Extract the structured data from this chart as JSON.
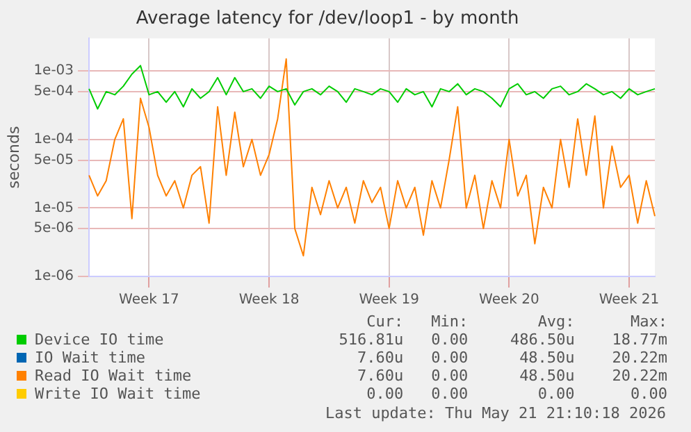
{
  "chart_data": {
    "type": "line",
    "title": "Average latency for /dev/loop1 - by month",
    "ylabel": "seconds",
    "log": "y",
    "grid": true,
    "legend": "bottom",
    "categories": [
      null,
      null,
      null,
      null,
      null,
      null,
      null,
      "Week 17",
      null,
      null,
      null,
      null,
      null,
      null,
      null,
      null,
      null,
      null,
      null,
      null,
      null,
      "Week 18",
      null,
      null,
      null,
      null,
      null,
      null,
      null,
      null,
      null,
      null,
      null,
      null,
      null,
      "Week 19",
      null,
      null,
      null,
      null,
      null,
      null,
      null,
      null,
      null,
      null,
      null,
      null,
      null,
      "Week 20",
      null,
      null,
      null,
      null,
      null,
      null,
      null,
      null,
      null,
      null,
      null,
      null,
      null,
      "Week 21",
      null,
      null,
      null
    ],
    "ylim": [
      1e-06,
      0.003
    ],
    "yticks": [
      {
        "value": 1e-06,
        "label": "1e-06"
      },
      {
        "value": 5e-06,
        "label": "5e-06"
      },
      {
        "value": 1e-05,
        "label": "1e-05"
      },
      {
        "value": 5e-05,
        "label": "5e-05"
      },
      {
        "value": 0.0001,
        "label": "1e-04"
      },
      {
        "value": 0.0005,
        "label": "5e-04"
      },
      {
        "value": 0.001,
        "label": "1e-03"
      }
    ],
    "series": [
      {
        "name": "Device IO time",
        "color": "#00cc00",
        "values": [
          0.00055,
          0.00028,
          0.0005,
          0.00045,
          0.0006,
          0.0009,
          0.0012,
          0.00045,
          0.0005,
          0.00035,
          0.0005,
          0.0003,
          0.00055,
          0.0004,
          0.0005,
          0.0008,
          0.00045,
          0.0008,
          0.0005,
          0.00055,
          0.0004,
          0.0006,
          0.0005,
          0.00055,
          0.00032,
          0.0005,
          0.00055,
          0.00045,
          0.0006,
          0.0005,
          0.00035,
          0.00055,
          0.0005,
          0.00045,
          0.00055,
          0.0005,
          0.00035,
          0.00055,
          0.00045,
          0.0005,
          0.0003,
          0.00055,
          0.0005,
          0.00065,
          0.00045,
          0.00055,
          0.0005,
          0.0004,
          0.0003,
          0.00055,
          0.00065,
          0.00045,
          0.0005,
          0.0004,
          0.00055,
          0.0006,
          0.00045,
          0.0005,
          0.00065,
          0.00055,
          0.00045,
          0.0005,
          0.0004,
          0.00055,
          0.00045,
          0.0005,
          0.00055
        ]
      },
      {
        "name": "IO Wait time",
        "color": "#0066b3",
        "values": [
          null,
          null,
          null,
          null,
          null,
          null,
          null,
          null,
          null,
          null,
          null,
          null,
          null,
          null,
          null,
          null,
          null,
          null,
          null,
          null,
          null,
          null,
          null,
          null,
          null,
          null,
          null,
          null,
          null,
          null,
          null,
          null,
          null,
          null,
          null,
          null,
          null,
          null,
          null,
          null,
          null,
          null,
          null,
          null,
          null,
          null,
          null,
          null,
          null,
          null,
          null,
          null,
          null,
          null,
          null,
          null,
          null,
          null,
          null,
          null,
          null,
          null,
          null,
          null,
          null,
          null,
          null
        ]
      },
      {
        "name": "Read IO Wait time",
        "color": "#ff8000",
        "values": [
          3e-05,
          1.5e-05,
          2.5e-05,
          0.0001,
          0.0002,
          7e-06,
          0.0004,
          0.00015,
          3e-05,
          1.5e-05,
          2.5e-05,
          1e-05,
          3e-05,
          4e-05,
          6e-06,
          0.0003,
          3e-05,
          0.00025,
          4e-05,
          0.0001,
          3e-05,
          6e-05,
          0.0002,
          0.0015,
          5e-06,
          2e-06,
          2e-05,
          8e-06,
          2.5e-05,
          1e-05,
          2e-05,
          6e-06,
          2.5e-05,
          1.2e-05,
          2e-05,
          5e-06,
          2.5e-05,
          1e-05,
          2e-05,
          4e-06,
          2.5e-05,
          1e-05,
          5e-05,
          0.0003,
          1e-05,
          3e-05,
          5e-06,
          2.5e-05,
          1e-05,
          0.0001,
          1.5e-05,
          3e-05,
          3e-06,
          2e-05,
          1e-05,
          0.0001,
          2e-05,
          0.0002,
          3e-05,
          0.00022,
          1e-05,
          8e-05,
          2e-05,
          3e-05,
          6e-06,
          2.5e-05,
          7.6e-06
        ]
      },
      {
        "name": "Write IO Wait time",
        "color": "#ffcc00",
        "values": [
          null,
          null,
          null,
          null,
          null,
          null,
          null,
          null,
          null,
          null,
          null,
          null,
          null,
          null,
          null,
          null,
          null,
          null,
          null,
          null,
          null,
          null,
          null,
          null,
          null,
          null,
          null,
          null,
          null,
          null,
          null,
          null,
          null,
          null,
          null,
          null,
          null,
          null,
          null,
          null,
          null,
          null,
          null,
          null,
          null,
          null,
          null,
          null,
          null,
          null,
          null,
          null,
          null,
          null,
          null,
          null,
          null,
          null,
          null,
          null,
          null,
          null,
          null,
          null,
          null,
          null,
          null
        ]
      }
    ],
    "annotations": [
      "Cur:",
      "Min:",
      "Avg:",
      "Max:",
      "516.81u",
      "0.00",
      "486.50u",
      "18.77m",
      "7.60u",
      "0.00",
      "48.50u",
      "20.22m",
      "7.60u",
      "0.00",
      "48.50u",
      "20.22m",
      "0.00",
      "0.00",
      "0.00",
      "0.00",
      "Last update: Thu May 21 21:10:18 2026"
    ]
  }
}
